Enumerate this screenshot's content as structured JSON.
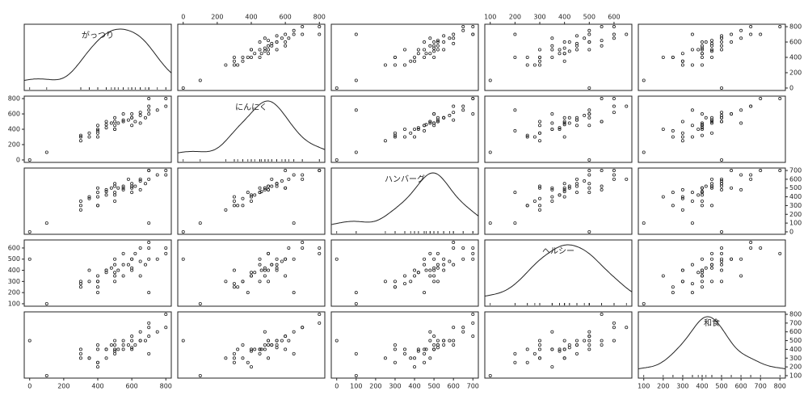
{
  "chart_data": {
    "type": "scatter_matrix",
    "point_color": "#222",
    "variables": [
      {
        "name": "がっつり",
        "lim": [
          -32,
          832
        ],
        "ticks": [
          0,
          200,
          400,
          600,
          800
        ],
        "values": [
          0,
          100,
          300,
          300,
          300,
          350,
          400,
          400,
          400,
          400,
          450,
          450,
          480,
          500,
          500,
          500,
          500,
          520,
          550,
          550,
          580,
          600,
          600,
          600,
          620,
          650,
          650,
          680,
          700,
          700,
          700,
          750,
          800,
          800,
          400,
          500,
          600,
          350,
          450,
          550,
          650,
          700
        ]
      },
      {
        "name": "にんにく",
        "lim": [
          -32,
          832
        ],
        "ticks": [
          0,
          200,
          400,
          600,
          800
        ],
        "values": [
          0,
          100,
          250,
          300,
          320,
          300,
          400,
          350,
          450,
          380,
          420,
          500,
          480,
          400,
          500,
          450,
          550,
          480,
          500,
          600,
          520,
          550,
          450,
          600,
          500,
          480,
          620,
          550,
          600,
          700,
          800,
          650,
          800,
          700,
          300,
          400,
          550,
          350,
          460,
          520,
          580,
          650
        ]
      },
      {
        "name": "ハンバーグ",
        "lim": [
          -28,
          728
        ],
        "ticks": [
          0,
          100,
          200,
          300,
          400,
          500,
          600,
          700
        ],
        "values": [
          0,
          100,
          250,
          350,
          300,
          400,
          400,
          300,
          500,
          450,
          420,
          480,
          500,
          350,
          520,
          450,
          550,
          500,
          480,
          500,
          600,
          550,
          450,
          500,
          520,
          480,
          600,
          550,
          700,
          600,
          700,
          650,
          700,
          650,
          300,
          420,
          520,
          380,
          460,
          520,
          580,
          100
        ]
      },
      {
        "name": "ヘルシー",
        "lim": [
          78,
          672
        ],
        "ticks": [
          100,
          200,
          300,
          400,
          500,
          600
        ],
        "values": [
          500,
          100,
          300,
          280,
          250,
          400,
          350,
          300,
          300,
          200,
          380,
          400,
          420,
          350,
          300,
          450,
          500,
          400,
          550,
          350,
          450,
          400,
          500,
          500,
          550,
          350,
          600,
          450,
          500,
          650,
          600,
          500,
          550,
          600,
          250,
          380,
          420,
          300,
          400,
          450,
          480,
          200
        ]
      },
      {
        "name": "和食",
        "lim": [
          72,
          828
        ],
        "ticks": [
          100,
          200,
          300,
          400,
          500,
          600,
          700,
          800
        ],
        "values": [
          500,
          100,
          300,
          350,
          400,
          300,
          200,
          450,
          400,
          250,
          400,
          300,
          450,
          400,
          500,
          350,
          450,
          400,
          500,
          400,
          450,
          500,
          400,
          550,
          450,
          600,
          500,
          500,
          550,
          650,
          700,
          600,
          800,
          650,
          250,
          380,
          420,
          300,
          400,
          450,
          500,
          350
        ]
      }
    ]
  }
}
